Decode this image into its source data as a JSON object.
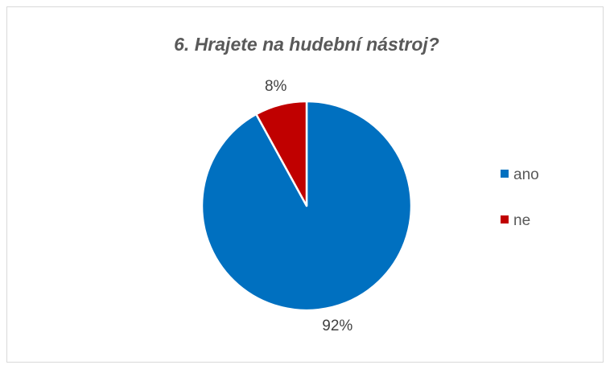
{
  "chart_data": {
    "type": "pie",
    "title": "6. Hrajete na hudební nástroj?",
    "categories": [
      "ano",
      "ne"
    ],
    "values": [
      92,
      8
    ],
    "data_labels": [
      "92%",
      "8%"
    ],
    "colors": [
      "#0070c0",
      "#c00000"
    ],
    "start_angle_deg": 0,
    "direction": "clockwise",
    "legend": {
      "position": "right",
      "entries": [
        "ano",
        "ne"
      ]
    }
  }
}
